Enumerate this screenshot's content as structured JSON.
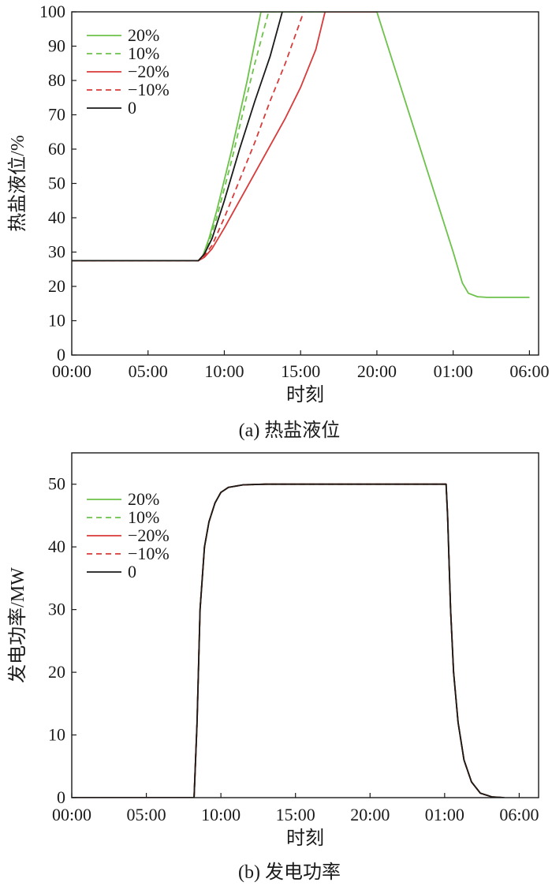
{
  "chart_data": [
    {
      "type": "line",
      "caption": "(a) 热盐液位",
      "xlabel": "时刻",
      "ylabel": "热盐液位/%",
      "x_unit": "hours since 00:00",
      "xlim": [
        0,
        30.6
      ],
      "ylim": [
        0,
        100
      ],
      "x_ticks": [
        {
          "x": 0,
          "label": "00:00"
        },
        {
          "x": 5,
          "label": "05:00"
        },
        {
          "x": 10,
          "label": "10:00"
        },
        {
          "x": 15,
          "label": "15:00"
        },
        {
          "x": 20,
          "label": "20:00"
        },
        {
          "x": 25,
          "label": "01:00"
        },
        {
          "x": 30,
          "label": "06:00"
        }
      ],
      "y_ticks": [
        0,
        10,
        20,
        30,
        40,
        50,
        60,
        70,
        80,
        90,
        100
      ],
      "legend_position": "top-left",
      "series": [
        {
          "name": "20%",
          "color": "#6cc24a",
          "dash": "solid",
          "points": [
            [
              0,
              27.5
            ],
            [
              8.3,
              27.5
            ],
            [
              8.6,
              29
            ],
            [
              9.0,
              34
            ],
            [
              9.5,
              42
            ],
            [
              10.5,
              60
            ],
            [
              11.5,
              80
            ],
            [
              12.4,
              100
            ],
            [
              20,
              100
            ],
            [
              25,
              30
            ],
            [
              25.6,
              21
            ],
            [
              26.0,
              18
            ],
            [
              26.6,
              17
            ],
            [
              27.2,
              16.8
            ],
            [
              30,
              16.8
            ]
          ]
        },
        {
          "name": "10%",
          "color": "#6cc24a",
          "dash": "dashed",
          "points": [
            [
              0,
              27.5
            ],
            [
              8.3,
              27.5
            ],
            [
              8.6,
              29
            ],
            [
              9.0,
              33
            ],
            [
              9.5,
              40
            ],
            [
              10.5,
              57
            ],
            [
              11.5,
              76
            ],
            [
              12.0,
              85
            ],
            [
              12.9,
              100
            ],
            [
              20,
              100
            ]
          ]
        },
        {
          "name": "−20%",
          "color": "#d93a3a",
          "dash": "solid",
          "points": [
            [
              0,
              27.5
            ],
            [
              8.3,
              27.5
            ],
            [
              8.7,
              28.5
            ],
            [
              9.2,
              31
            ],
            [
              10,
              37
            ],
            [
              11,
              45
            ],
            [
              12,
              53
            ],
            [
              13,
              61
            ],
            [
              14,
              69
            ],
            [
              15,
              78
            ],
            [
              16.0,
              89
            ],
            [
              16.6,
              100
            ],
            [
              20,
              100
            ]
          ]
        },
        {
          "name": "−10%",
          "color": "#d93a3a",
          "dash": "dashed",
          "points": [
            [
              0,
              27.5
            ],
            [
              8.3,
              27.5
            ],
            [
              8.7,
              29
            ],
            [
              9.2,
              32
            ],
            [
              10,
              40
            ],
            [
              11,
              51
            ],
            [
              12,
              62
            ],
            [
              13,
              74
            ],
            [
              14,
              85
            ],
            [
              15.2,
              100
            ]
          ]
        },
        {
          "name": "0",
          "color": "#1a1a1a",
          "dash": "solid",
          "points": [
            [
              0,
              27.5
            ],
            [
              8.3,
              27.5
            ],
            [
              8.7,
              29.5
            ],
            [
              9.2,
              34
            ],
            [
              10,
              45
            ],
            [
              11,
              60
            ],
            [
              12,
              74
            ],
            [
              13,
              87
            ],
            [
              13.8,
              100
            ]
          ]
        }
      ]
    },
    {
      "type": "line",
      "caption": "(b) 发电功率",
      "xlabel": "时刻",
      "ylabel": "发电功率/MW",
      "x_unit": "hours since 00:00",
      "xlim": [
        0,
        31.3
      ],
      "ylim": [
        0,
        55
      ],
      "x_ticks": [
        {
          "x": 0,
          "label": "00:00"
        },
        {
          "x": 5,
          "label": "05:00"
        },
        {
          "x": 10,
          "label": "10:00"
        },
        {
          "x": 15,
          "label": "15:00"
        },
        {
          "x": 20,
          "label": "20:00"
        },
        {
          "x": 25,
          "label": "01:00"
        },
        {
          "x": 30,
          "label": "06:00"
        }
      ],
      "y_ticks": [
        0,
        10,
        20,
        30,
        40,
        50
      ],
      "legend_position": "top-left",
      "series": [
        {
          "name": "20%",
          "color": "#6cc24a",
          "dash": "solid",
          "points": [
            [
              0,
              0
            ],
            [
              8.2,
              0
            ],
            [
              8.4,
              12
            ],
            [
              8.6,
              30
            ],
            [
              8.9,
              40
            ],
            [
              9.2,
              44
            ],
            [
              9.6,
              47
            ],
            [
              10,
              48.7
            ],
            [
              10.5,
              49.5
            ],
            [
              11.5,
              49.9
            ],
            [
              13,
              50
            ],
            [
              25.1,
              50
            ],
            [
              25.2,
              45
            ],
            [
              25.4,
              30
            ],
            [
              25.6,
              20
            ],
            [
              25.9,
              12
            ],
            [
              26.3,
              6
            ],
            [
              26.8,
              2.5
            ],
            [
              27.4,
              0.7
            ],
            [
              28.2,
              0.1
            ],
            [
              29,
              0
            ]
          ]
        },
        {
          "name": "10%",
          "color": "#6cc24a",
          "dash": "dashed",
          "points": [
            [
              0,
              0
            ],
            [
              8.2,
              0
            ],
            [
              8.4,
              12
            ],
            [
              8.6,
              30
            ],
            [
              8.9,
              40
            ],
            [
              9.2,
              44
            ],
            [
              9.6,
              47
            ],
            [
              10,
              48.7
            ],
            [
              10.5,
              49.5
            ],
            [
              11.5,
              49.9
            ],
            [
              13,
              50
            ],
            [
              25.1,
              50
            ],
            [
              25.2,
              45
            ],
            [
              25.4,
              30
            ],
            [
              25.6,
              20
            ],
            [
              25.9,
              12
            ],
            [
              26.3,
              6
            ],
            [
              26.8,
              2.5
            ],
            [
              27.4,
              0.7
            ],
            [
              28.2,
              0.1
            ],
            [
              29,
              0
            ]
          ]
        },
        {
          "name": "−20%",
          "color": "#d93a3a",
          "dash": "solid",
          "points": [
            [
              0,
              0
            ],
            [
              8.2,
              0
            ],
            [
              8.4,
              12
            ],
            [
              8.6,
              30
            ],
            [
              8.9,
              40
            ],
            [
              9.2,
              44
            ],
            [
              9.6,
              47
            ],
            [
              10,
              48.7
            ],
            [
              10.5,
              49.5
            ],
            [
              11.5,
              49.9
            ],
            [
              13,
              50
            ],
            [
              25.1,
              50
            ],
            [
              25.2,
              45
            ],
            [
              25.4,
              30
            ],
            [
              25.6,
              20
            ],
            [
              25.9,
              12
            ],
            [
              26.3,
              6
            ],
            [
              26.8,
              2.5
            ],
            [
              27.4,
              0.7
            ],
            [
              28.2,
              0.1
            ],
            [
              29,
              0
            ]
          ]
        },
        {
          "name": "−10%",
          "color": "#d93a3a",
          "dash": "dashed",
          "points": [
            [
              0,
              0
            ],
            [
              8.2,
              0
            ],
            [
              8.4,
              12
            ],
            [
              8.6,
              30
            ],
            [
              8.9,
              40
            ],
            [
              9.2,
              44
            ],
            [
              9.6,
              47
            ],
            [
              10,
              48.7
            ],
            [
              10.5,
              49.5
            ],
            [
              11.5,
              49.9
            ],
            [
              13,
              50
            ],
            [
              25.1,
              50
            ],
            [
              25.2,
              45
            ],
            [
              25.4,
              30
            ],
            [
              25.6,
              20
            ],
            [
              25.9,
              12
            ],
            [
              26.3,
              6
            ],
            [
              26.8,
              2.5
            ],
            [
              27.4,
              0.7
            ],
            [
              28.2,
              0.1
            ],
            [
              29,
              0
            ]
          ]
        },
        {
          "name": "0",
          "color": "#1a1a1a",
          "dash": "solid",
          "points": [
            [
              0,
              0
            ],
            [
              8.2,
              0
            ],
            [
              8.4,
              12
            ],
            [
              8.6,
              30
            ],
            [
              8.9,
              40
            ],
            [
              9.2,
              44
            ],
            [
              9.6,
              47
            ],
            [
              10,
              48.7
            ],
            [
              10.5,
              49.5
            ],
            [
              11.5,
              49.9
            ],
            [
              13,
              50
            ],
            [
              25.1,
              50
            ],
            [
              25.2,
              45
            ],
            [
              25.4,
              30
            ],
            [
              25.6,
              20
            ],
            [
              25.9,
              12
            ],
            [
              26.3,
              6
            ],
            [
              26.8,
              2.5
            ],
            [
              27.4,
              0.7
            ],
            [
              28.2,
              0.1
            ],
            [
              29,
              0
            ]
          ]
        }
      ]
    }
  ]
}
